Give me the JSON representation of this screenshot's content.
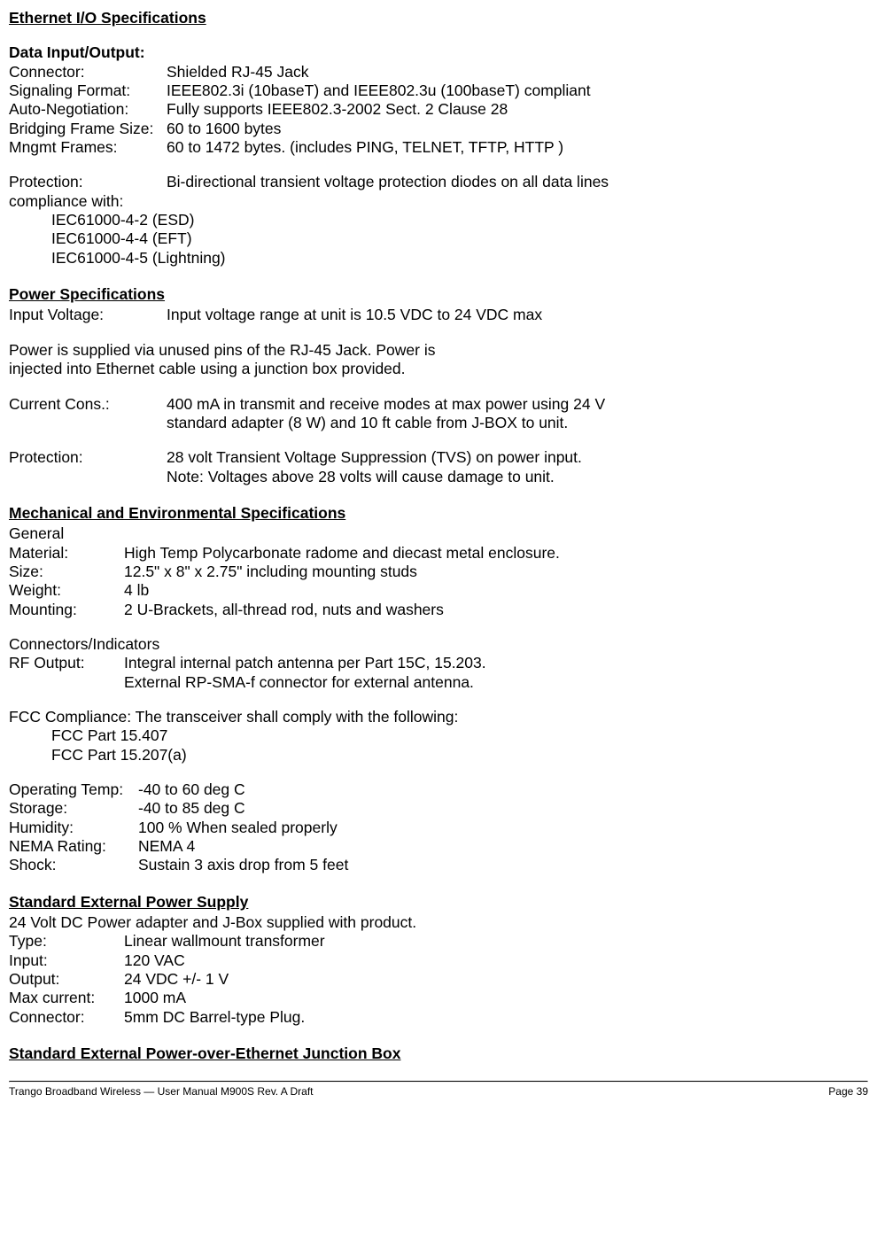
{
  "ethernet": {
    "title": "Ethernet I/O Specifications",
    "dataio_heading": "Data Input/Output:",
    "connector": {
      "label": "Connector:",
      "value": "Shielded RJ-45 Jack"
    },
    "signaling": {
      "label": "Signaling Format:",
      "value": "IEEE802.3i (10baseT) and IEEE802.3u (100baseT) compliant"
    },
    "autoneg": {
      "label": "Auto-Negotiation:",
      "value": "Fully supports IEEE802.3-2002 Sect. 2 Clause 28"
    },
    "bridging": {
      "label": "Bridging Frame Size:",
      "value": "60 to 1600 bytes"
    },
    "mngmt": {
      "label": "Mngmt Frames:",
      "value": "60 to 1472 bytes. (includes PING, TELNET, TFTP, HTTP )"
    },
    "protection": {
      "label": "Protection:",
      "value": "Bi-directional transient voltage protection diodes on all data lines"
    },
    "compliance_with": "compliance with:",
    "compliance_items": {
      "a": "IEC61000-4-2 (ESD)",
      "b": "IEC61000-4-4 (EFT)",
      "c": "IEC61000-4-5 (Lightning)"
    }
  },
  "power": {
    "title": "Power Specifications",
    "input_voltage": {
      "label": "Input Voltage:",
      "value": "Input voltage range at unit is 10.5 VDC to 24 VDC max"
    },
    "note1": "Power is supplied via unused pins of the RJ-45 Jack. Power is",
    "note2": "injected into Ethernet cable using a junction box provided.",
    "current": {
      "label": "Current Cons.:",
      "value1": "400 mA in transmit and receive modes at max power using 24 V",
      "value2": "standard adapter (8 W) and 10 ft cable from J-BOX to unit."
    },
    "protection": {
      "label": "Protection:",
      "value1": "28 volt Transient Voltage Suppression (TVS) on power input.",
      "value2": "Note:  Voltages above 28 volts will cause damage to unit."
    }
  },
  "mech": {
    "title": "Mechanical and Environmental Specifications",
    "general": "General",
    "material": {
      "label": "Material:",
      "value": "High Temp Polycarbonate radome and diecast metal enclosure."
    },
    "size": {
      "label": "Size:",
      "value": "12.5\" x 8\" x 2.75\" including mounting studs"
    },
    "weight": {
      "label": "Weight:",
      "value": "4 lb"
    },
    "mounting": {
      "label": "Mounting:",
      "value": "2 U-Brackets, all-thread rod, nuts and washers"
    },
    "connectors_heading": "Connectors/Indicators",
    "rfoutput": {
      "label": "RF Output:",
      "value1": "Integral internal patch antenna per Part 15C, 15.203.",
      "value2": "External RP-SMA-f connector for external antenna."
    },
    "fcc_compliance": "FCC Compliance: The transceiver shall comply with the following:",
    "fcc_items": {
      "a": "FCC Part 15.407",
      "b": "FCC Part 15.207(a)"
    },
    "optemp": {
      "label": "Operating Temp:",
      "value": "-40 to 60 deg C"
    },
    "storage": {
      "label": "Storage:",
      "value": "-40 to 85 deg C"
    },
    "humidity": {
      "label": "Humidity:",
      "value": "100 % When sealed properly"
    },
    "nema": {
      "label": "NEMA Rating:",
      "value": "NEMA 4"
    },
    "shock": {
      "label": "Shock:",
      "value": "Sustain 3 axis drop from 5 feet"
    }
  },
  "stdpower": {
    "title": "Standard External Power Supply",
    "note": "24 Volt DC Power adapter and J-Box supplied with product.",
    "type": {
      "label": "Type:",
      "value": "Linear wallmount transformer"
    },
    "input": {
      "label": "Input:",
      "value": "120 VAC"
    },
    "output": {
      "label": "Output:",
      "value": "24 VDC +/- 1 V"
    },
    "maxcurrent": {
      "label": "Max current:",
      "value": "1000 mA"
    },
    "connector": {
      "label": "Connector:",
      "value": "5mm DC Barrel-type Plug."
    }
  },
  "poe": {
    "title": "Standard External Power-over-Ethernet Junction Box"
  },
  "footer": {
    "left": "Trango Broadband Wireless — User Manual M900S  Rev. A Draft",
    "right": "Page 39"
  }
}
